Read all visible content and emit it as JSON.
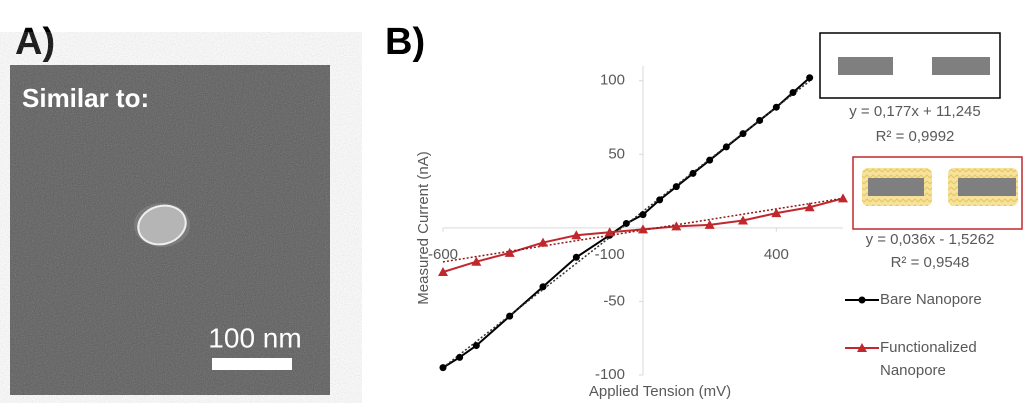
{
  "panel_a": {
    "label": "A)",
    "caption": "Similar to:",
    "scale_bar": "100 nm"
  },
  "panel_b": {
    "label": "B)"
  },
  "chart_data": {
    "type": "line",
    "x_label": "Applied Tension (mV)",
    "y_label": "Measured Current (nA)",
    "xlim": [
      -600,
      600
    ],
    "ylim": [
      -100,
      110
    ],
    "xticks": [
      -600,
      -100,
      400
    ],
    "yticks": [
      -100,
      -50,
      50,
      100
    ],
    "grid": false,
    "legend": "right",
    "series": [
      {
        "name": "Bare Nanopore",
        "color": "#000000",
        "marker": "circle",
        "x": [
          -600,
          -550,
          -500,
          -400,
          -300,
          -200,
          -100,
          -50,
          0,
          50,
          100,
          150,
          200,
          250,
          300,
          350,
          400,
          450,
          500
        ],
        "values": [
          -95,
          -88,
          -80,
          -60,
          -40,
          -20,
          -5,
          3,
          9,
          19,
          28,
          37,
          46,
          55,
          64,
          73,
          82,
          92,
          102
        ],
        "trendline": {
          "slope": 0.177,
          "intercept": 11.245,
          "equation": "y = 0,177x + 11,245",
          "r2": "R² = 0,9992"
        }
      },
      {
        "name": "Functionalized Nanopore",
        "color": "#c0282d",
        "marker": "triangle",
        "x": [
          -600,
          -500,
          -400,
          -300,
          -200,
          -100,
          0,
          100,
          200,
          300,
          400,
          500,
          600
        ],
        "values": [
          -30,
          -23,
          -17,
          -10,
          -5,
          -3,
          -1,
          1,
          2,
          5,
          10,
          14,
          20
        ],
        "trendline": {
          "slope": 0.036,
          "intercept": -1.5262,
          "equation": "y = 0,036x - 1,5262",
          "r2": "R² = 0,9548"
        }
      }
    ]
  }
}
